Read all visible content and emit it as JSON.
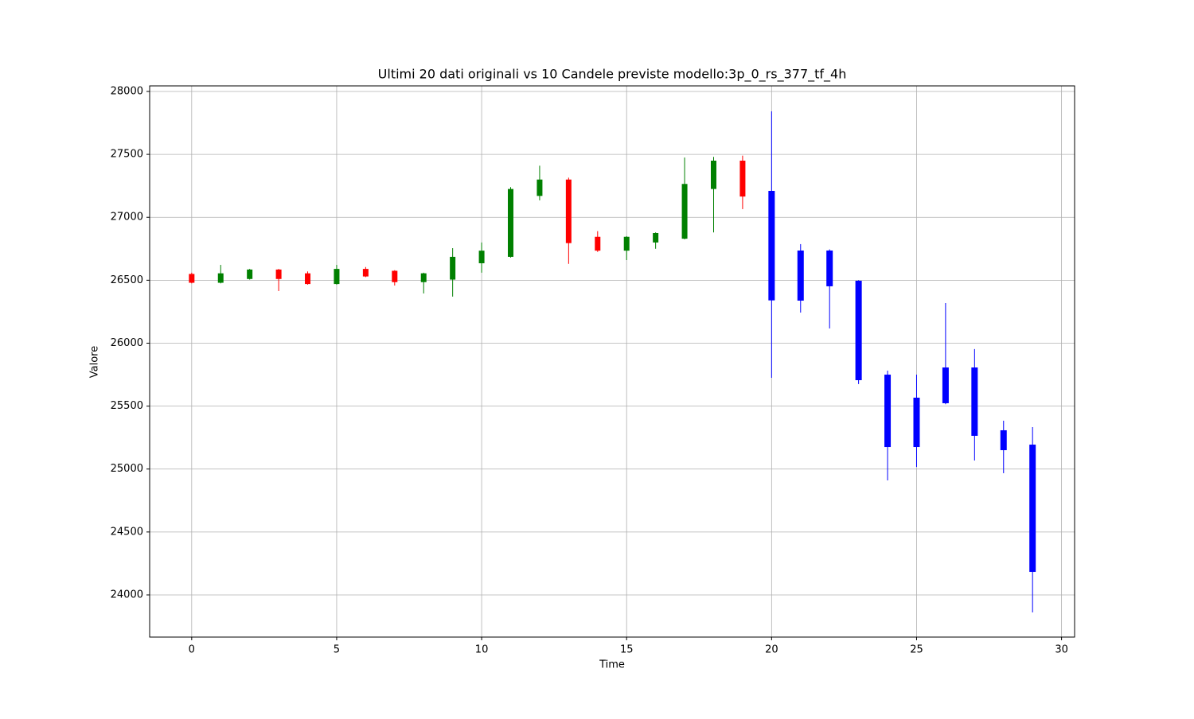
{
  "chart_data": {
    "type": "candlestick",
    "title": "Ultimi 20 dati originali vs 10 Candele previste modello:3p_0_rs_377_tf_4h",
    "x_label": "Time",
    "y_label": "Valore",
    "xlim": [
      -1.45,
      30.45
    ],
    "ylim": [
      23665,
      28044
    ],
    "xticks": [
      0,
      5,
      10,
      15,
      20,
      25,
      30
    ],
    "yticks": [
      24000,
      24500,
      25000,
      25500,
      26000,
      26500,
      27000,
      27500,
      28000
    ],
    "grid": true,
    "original": {
      "up_color": "green",
      "down_color": "red",
      "x": [
        0,
        1,
        2,
        3,
        4,
        5,
        6,
        7,
        8,
        9,
        10,
        11,
        12,
        13,
        14,
        15,
        16,
        17,
        18,
        19
      ],
      "open": [
        26550,
        26480,
        26510,
        26585,
        26555,
        26470,
        26590,
        26575,
        26485,
        26505,
        26635,
        26686,
        27170,
        27300,
        26845,
        26735,
        26800,
        26830,
        27225,
        27450
      ],
      "high": [
        26560,
        26622,
        26590,
        26590,
        26570,
        26622,
        26605,
        26580,
        26560,
        26755,
        26800,
        27240,
        27410,
        27315,
        26890,
        26850,
        26880,
        27475,
        27480,
        27490
      ],
      "low": [
        26475,
        26475,
        26505,
        26414,
        26465,
        26465,
        26525,
        26458,
        26395,
        26370,
        26560,
        26680,
        27135,
        26630,
        26725,
        26660,
        26750,
        26825,
        26880,
        27065
      ],
      "close": [
        26480,
        26555,
        26585,
        26510,
        26470,
        26590,
        26530,
        26485,
        26555,
        26686,
        26735,
        27225,
        27300,
        26795,
        26735,
        26845,
        26875,
        27265,
        27450,
        27165
      ]
    },
    "predicted": {
      "color": "blue",
      "x": [
        20,
        21,
        22,
        23,
        24,
        25,
        26,
        27,
        28,
        29
      ],
      "open": [
        27210,
        26736,
        26736,
        26496,
        25750,
        25567,
        25807,
        25807,
        25308,
        25194
      ],
      "high": [
        27842,
        26787,
        26745,
        26500,
        25782,
        25750,
        26319,
        25953,
        25384,
        25333
      ],
      "low": [
        25725,
        26243,
        26117,
        25675,
        24910,
        25017,
        25515,
        25068,
        24967,
        23861
      ],
      "close": [
        26340,
        26338,
        26452,
        25706,
        25175,
        25175,
        25523,
        25264,
        25150,
        24183
      ]
    }
  }
}
